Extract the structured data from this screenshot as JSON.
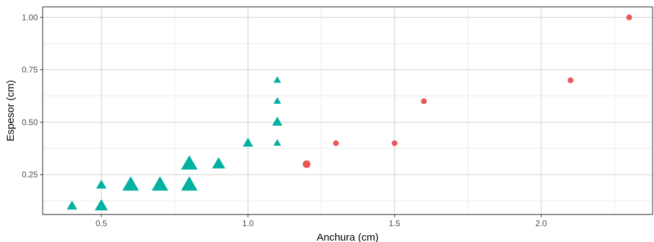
{
  "chart_data": {
    "type": "scatter",
    "title": "",
    "xlabel": "Anchura (cm)",
    "ylabel": "Espesor (cm)",
    "xlim": [
      0.3,
      2.38
    ],
    "ylim": [
      0.06,
      1.05
    ],
    "x_ticks": [
      0.5,
      1.0,
      1.5,
      2.0
    ],
    "x_tick_labels": [
      "0.5",
      "1.0",
      "1.5",
      "2.0"
    ],
    "y_ticks": [
      0.25,
      0.5,
      0.75,
      1.0
    ],
    "y_tick_labels": [
      "0.25",
      "0.50",
      "0.75",
      "1.00"
    ],
    "grid": true,
    "legend": "none",
    "series": [
      {
        "shape": "triangle",
        "color": "#00b0a0",
        "points": [
          {
            "x": 0.4,
            "y": 0.1,
            "size": 1
          },
          {
            "x": 0.5,
            "y": 0.1,
            "size": 2
          },
          {
            "x": 0.5,
            "y": 0.2,
            "size": 1
          },
          {
            "x": 0.6,
            "y": 0.2,
            "size": 3
          },
          {
            "x": 0.7,
            "y": 0.2,
            "size": 3
          },
          {
            "x": 0.8,
            "y": 0.2,
            "size": 3
          },
          {
            "x": 0.8,
            "y": 0.3,
            "size": 3
          },
          {
            "x": 0.9,
            "y": 0.3,
            "size": 2
          },
          {
            "x": 1.0,
            "y": 0.4,
            "size": 1
          },
          {
            "x": 1.1,
            "y": 0.4,
            "size": 0
          },
          {
            "x": 1.1,
            "y": 0.5,
            "size": 1
          },
          {
            "x": 1.1,
            "y": 0.6,
            "size": 0
          },
          {
            "x": 1.1,
            "y": 0.7,
            "size": 0
          }
        ]
      },
      {
        "shape": "circle",
        "color": "#e8585a",
        "points": [
          {
            "x": 1.2,
            "y": 0.3,
            "size": 2
          },
          {
            "x": 1.3,
            "y": 0.4,
            "size": 1
          },
          {
            "x": 1.5,
            "y": 0.4,
            "size": 1
          },
          {
            "x": 1.6,
            "y": 0.6,
            "size": 1
          },
          {
            "x": 2.1,
            "y": 0.7,
            "size": 1
          },
          {
            "x": 2.3,
            "y": 1.0,
            "size": 1
          }
        ]
      }
    ]
  }
}
